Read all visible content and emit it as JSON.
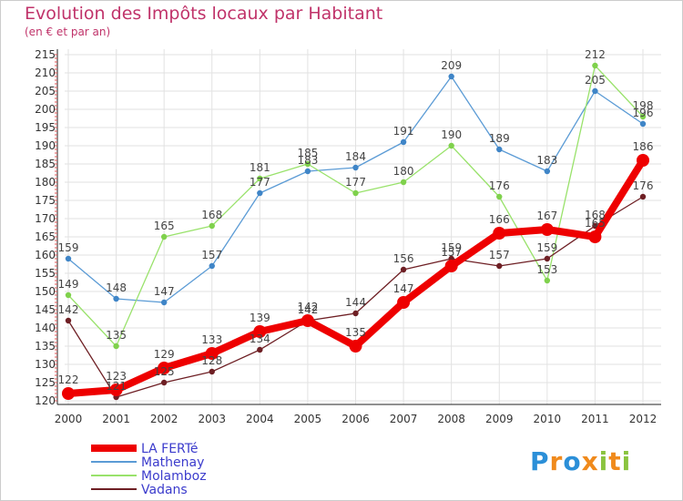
{
  "chart_data": {
    "type": "line",
    "title": "Evolution des Impôts locaux par Habitant",
    "subtitle": "(en € et par an)",
    "xlabel": "",
    "ylabel": "",
    "categories": [
      "2000",
      "2001",
      "2002",
      "2003",
      "2004",
      "2005",
      "2006",
      "2007",
      "2008",
      "2009",
      "2010",
      "2011",
      "2012"
    ],
    "ylim": [
      120,
      215
    ],
    "yticks": [
      120,
      125,
      130,
      135,
      140,
      145,
      150,
      155,
      160,
      165,
      170,
      175,
      180,
      185,
      190,
      195,
      200,
      205,
      210,
      215
    ],
    "legend_position": "bottom-left",
    "series": [
      {
        "name": "Mathenay",
        "color": "#5b9bd5",
        "marker": "#3f85c7",
        "values": [
          159,
          148,
          147,
          157,
          177,
          183,
          184,
          191,
          209,
          189,
          183,
          205,
          196
        ]
      },
      {
        "name": "Molamboz",
        "color": "#99e26b",
        "marker": "#7fd14c",
        "values": [
          149,
          135,
          165,
          168,
          181,
          185,
          177,
          180,
          190,
          176,
          153,
          212,
          198
        ]
      },
      {
        "name": "Vadans",
        "color": "#6e1f24",
        "marker": "#6e1f24",
        "values": [
          142,
          121,
          125,
          128,
          134,
          142,
          144,
          156,
          159,
          157,
          159,
          168,
          176
        ]
      },
      {
        "name": "LA FERTé",
        "color": "#ee0000",
        "marker": "#ee0000",
        "values": [
          122,
          123,
          129,
          133,
          139,
          142,
          135,
          147,
          157,
          166,
          167,
          165,
          186
        ]
      }
    ],
    "legend_order": [
      "LA FERTé",
      "Mathenay",
      "Molamboz",
      "Vadans"
    ]
  },
  "logo": {
    "text": "Proxiti",
    "letters": [
      "P",
      "r",
      "o",
      "x",
      "i",
      "t",
      "i"
    ],
    "colors": [
      "#2b8fd8",
      "#f08a1c",
      "#2b8fd8",
      "#f08a1c",
      "#8ac43f",
      "#f08a1c",
      "#8ac43f"
    ]
  }
}
